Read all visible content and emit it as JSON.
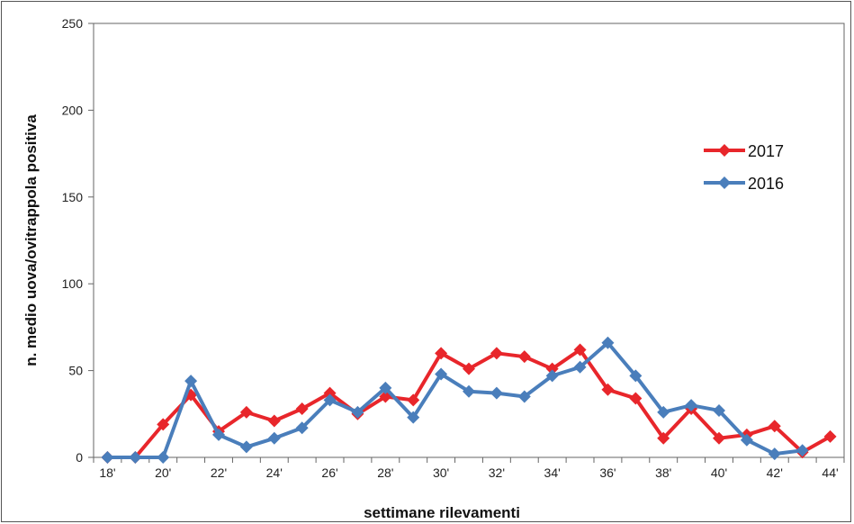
{
  "chart_data": {
    "type": "line",
    "xlabel": "settimane rilevamenti",
    "ylabel": "n. medio uova/ovitrappola positiva",
    "ylim": [
      0,
      250
    ],
    "yticks": [
      0,
      50,
      100,
      150,
      200,
      250
    ],
    "x": [
      18,
      19,
      20,
      21,
      22,
      23,
      24,
      25,
      26,
      27,
      28,
      29,
      30,
      31,
      32,
      33,
      34,
      35,
      36,
      37,
      38,
      39,
      40,
      41,
      42,
      43,
      44
    ],
    "xtick_labels": [
      "18'",
      "20'",
      "22'",
      "24'",
      "26'",
      "28'",
      "30'",
      "32'",
      "34'",
      "36'",
      "38'",
      "40'",
      "42'",
      "44'"
    ],
    "xtick_values": [
      18,
      20,
      22,
      24,
      26,
      28,
      30,
      32,
      34,
      36,
      38,
      40,
      42,
      44
    ],
    "grid": false,
    "legend_position": "top-right",
    "series": [
      {
        "name": "2017",
        "color": "#e8262b",
        "marker": "diamond",
        "values": [
          0,
          0,
          19,
          36,
          15,
          26,
          21,
          28,
          37,
          25,
          35,
          33,
          60,
          51,
          60,
          58,
          51,
          62,
          39,
          34,
          11,
          28,
          11,
          13,
          18,
          3,
          12
        ]
      },
      {
        "name": "2016",
        "color": "#4a7ebb",
        "marker": "diamond",
        "values": [
          0,
          0,
          0,
          44,
          13,
          6,
          11,
          17,
          33,
          26,
          40,
          23,
          48,
          38,
          37,
          35,
          47,
          52,
          66,
          47,
          26,
          30,
          27,
          10,
          2,
          4,
          null
        ]
      }
    ]
  }
}
